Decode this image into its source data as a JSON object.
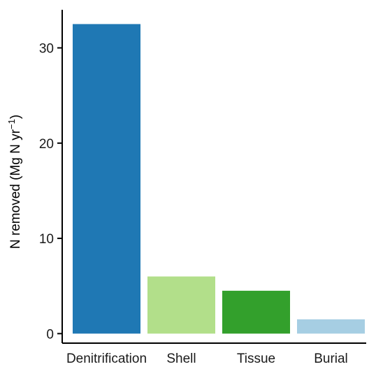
{
  "chart_data": {
    "type": "bar",
    "title": "",
    "xlabel": "",
    "ylabel": "N removed (Mg N yr",
    "ylabel_superscript": "−1",
    "ylabel_suffix": ")",
    "categories": [
      "Denitrification",
      "Shell",
      "Tissue",
      "Burial"
    ],
    "values": [
      32.5,
      6.0,
      4.5,
      1.5
    ],
    "colors": [
      "#1f78b4",
      "#b2df8a",
      "#33a02c",
      "#a6cee3"
    ],
    "ylim": [
      -1.0,
      34.0
    ],
    "yticks": [
      0,
      10,
      20,
      30
    ],
    "ytick_labels": [
      "0",
      "10",
      "20",
      "30"
    ],
    "grid": false,
    "legend": "none"
  }
}
